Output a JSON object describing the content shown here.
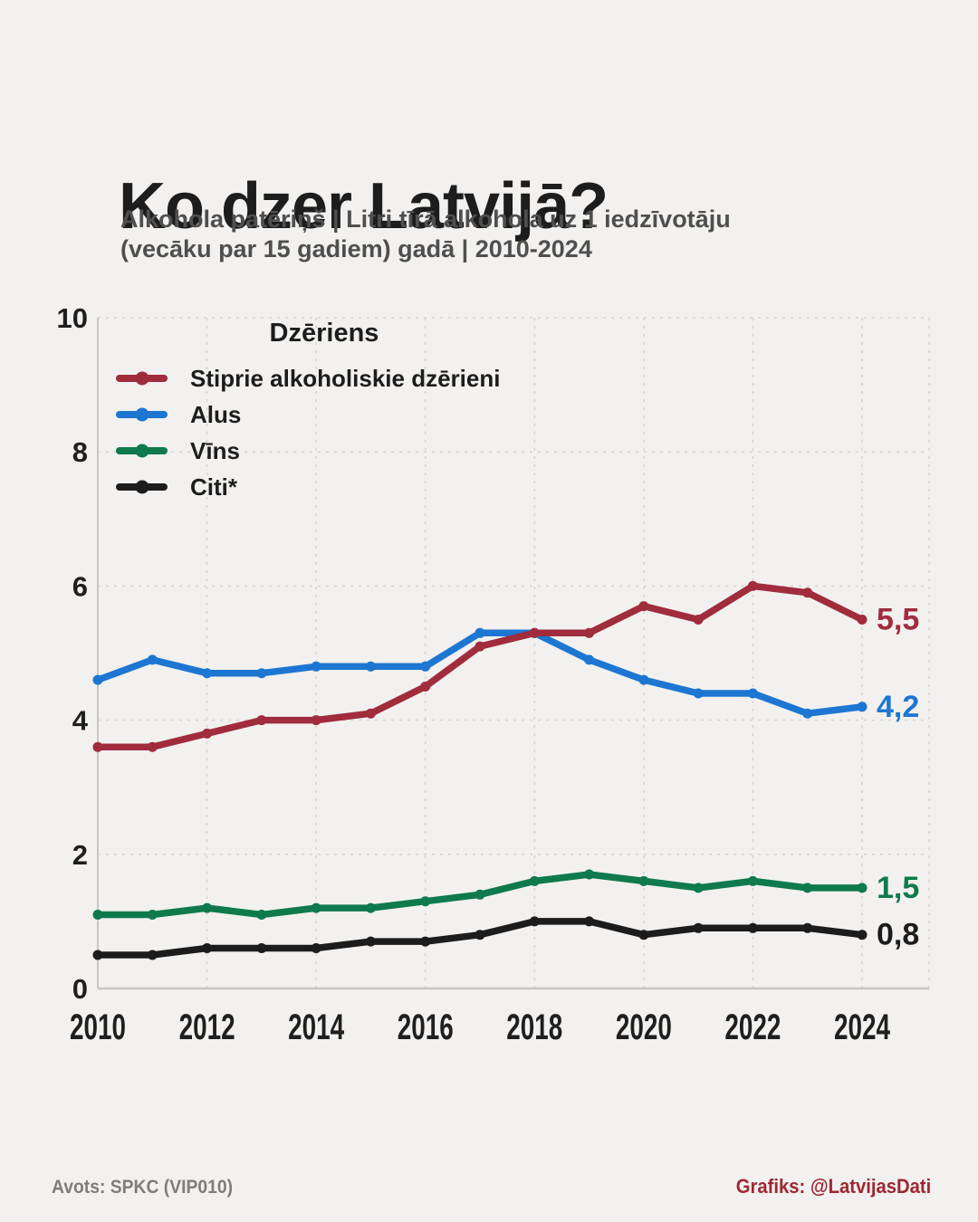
{
  "title": "Ko dzer Latvijā?",
  "subtitle": {
    "line1": "Alkohola patēriņš | Litri tīrā alkohola uz 1 iedzīvotāju",
    "line2": "(vecāku par 15 gadiem) gadā | 2010-2024"
  },
  "legend": {
    "title": "Dzēriens",
    "items": [
      {
        "label": "Stiprie alkoholiskie dzērieni",
        "color": "#a02c3c"
      },
      {
        "label": "Alus",
        "color": "#1d76d2"
      },
      {
        "label": "Vīns",
        "color": "#0f7a4b"
      },
      {
        "label": "Citi*",
        "color": "#1c1c1c"
      }
    ]
  },
  "footer": {
    "source": "Avots: SPKC (VIP010)",
    "credit": "Grafiks: @LatvijasDati"
  },
  "colors": {
    "background": "#f2f1ef",
    "gridline": "#d8d6d3",
    "axis_line": "#c8c6c3",
    "text": "#1f1f1f",
    "subtitle_text": "#4f4f4f",
    "source_text": "#7f7d7b",
    "credit_text": "#9e2733"
  },
  "chart_data": {
    "type": "line",
    "title": "Ko dzer Latvijā?",
    "subtitle": "Alkohola patēriņš | Litri tīrā alkohola uz 1 iedzīvotāju (vecāku par 15 gadiem) gadā | 2010-2024",
    "x": [
      2010,
      2011,
      2012,
      2013,
      2014,
      2015,
      2016,
      2017,
      2018,
      2019,
      2020,
      2021,
      2022,
      2023,
      2024
    ],
    "series": [
      {
        "name": "Stiprie alkoholiskie dzērieni",
        "color": "#a02c3c",
        "end_label": "5,5",
        "values": [
          3.6,
          3.6,
          3.8,
          4.0,
          4.0,
          4.1,
          4.5,
          5.1,
          5.3,
          5.3,
          5.7,
          5.5,
          6.0,
          5.9,
          5.5
        ]
      },
      {
        "name": "Alus",
        "color": "#1d76d2",
        "end_label": "4,2",
        "values": [
          4.6,
          4.9,
          4.7,
          4.7,
          4.8,
          4.8,
          4.8,
          5.3,
          5.3,
          4.9,
          4.6,
          4.4,
          4.4,
          4.1,
          4.2
        ]
      },
      {
        "name": "Vīns",
        "color": "#0f7a4b",
        "end_label": "1,5",
        "values": [
          1.1,
          1.1,
          1.2,
          1.1,
          1.2,
          1.2,
          1.3,
          1.4,
          1.6,
          1.7,
          1.6,
          1.5,
          1.6,
          1.5,
          1.5
        ]
      },
      {
        "name": "Citi*",
        "color": "#1c1c1c",
        "end_label": "0,8",
        "values": [
          0.5,
          0.5,
          0.6,
          0.6,
          0.6,
          0.7,
          0.7,
          0.8,
          1.0,
          1.0,
          0.8,
          0.9,
          0.9,
          0.9,
          0.8
        ]
      }
    ],
    "legend_title": "Dzēriens",
    "legend_position": "top-left-inside",
    "xlabel": "",
    "ylabel": "",
    "ylim": [
      0,
      10
    ],
    "yticks": [
      0,
      2,
      4,
      6,
      8,
      10
    ],
    "xticks": [
      2010,
      2012,
      2014,
      2016,
      2018,
      2020,
      2022,
      2024
    ],
    "grid": "dashed"
  }
}
